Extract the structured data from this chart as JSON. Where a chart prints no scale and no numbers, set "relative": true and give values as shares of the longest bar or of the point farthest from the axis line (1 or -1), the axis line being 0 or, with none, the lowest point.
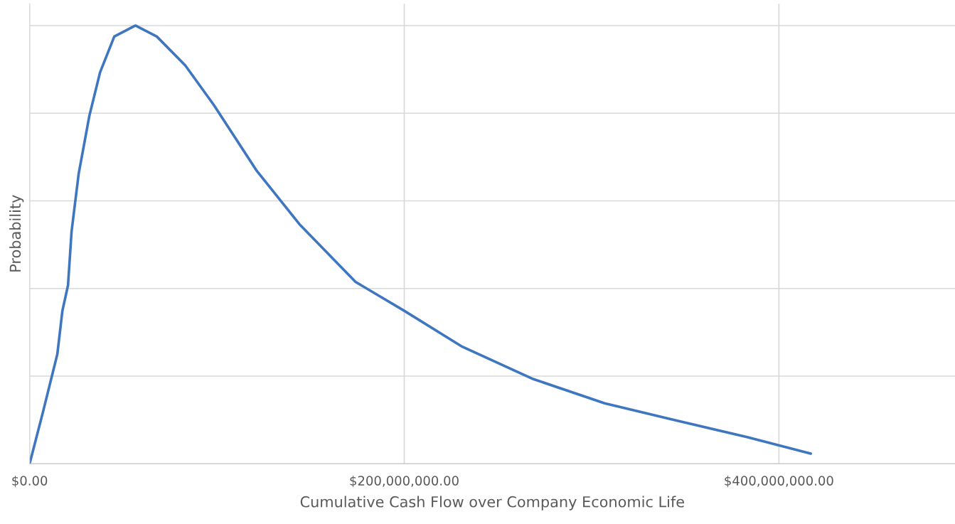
{
  "chart_data": {
    "type": "line",
    "xlabel": "Cumulative Cash Flow over Company Economic Life",
    "ylabel": "Probability",
    "relative": true,
    "xlim": [
      0,
      494000000
    ],
    "xticks": [
      {
        "value": 0,
        "label": "$0.00"
      },
      {
        "value": 200000000,
        "label": "$200,000,000.00"
      },
      {
        "value": 400000000,
        "label": "$400,000,000.00"
      }
    ],
    "grid": true,
    "marker": "none",
    "line_style": "solid",
    "series": [
      {
        "color": "#3f76c0",
        "x": [
          0,
          7200000,
          14800000,
          17500000,
          20500000,
          22400000,
          26200000,
          31900000,
          37600000,
          45200000,
          56500000,
          67900000,
          83100000,
          98300000,
          121000000,
          144000000,
          174000000,
          200000000,
          231000000,
          269000000,
          307000000,
          345000000,
          383000000,
          417000000
        ],
        "values": [
          0,
          0.119,
          0.25,
          0.349,
          0.407,
          0.53,
          0.662,
          0.794,
          0.893,
          0.975,
          1.0,
          0.975,
          0.909,
          0.819,
          0.67,
          0.547,
          0.415,
          0.349,
          0.267,
          0.193,
          0.138,
          0.099,
          0.061,
          0.023
        ]
      }
    ]
  }
}
